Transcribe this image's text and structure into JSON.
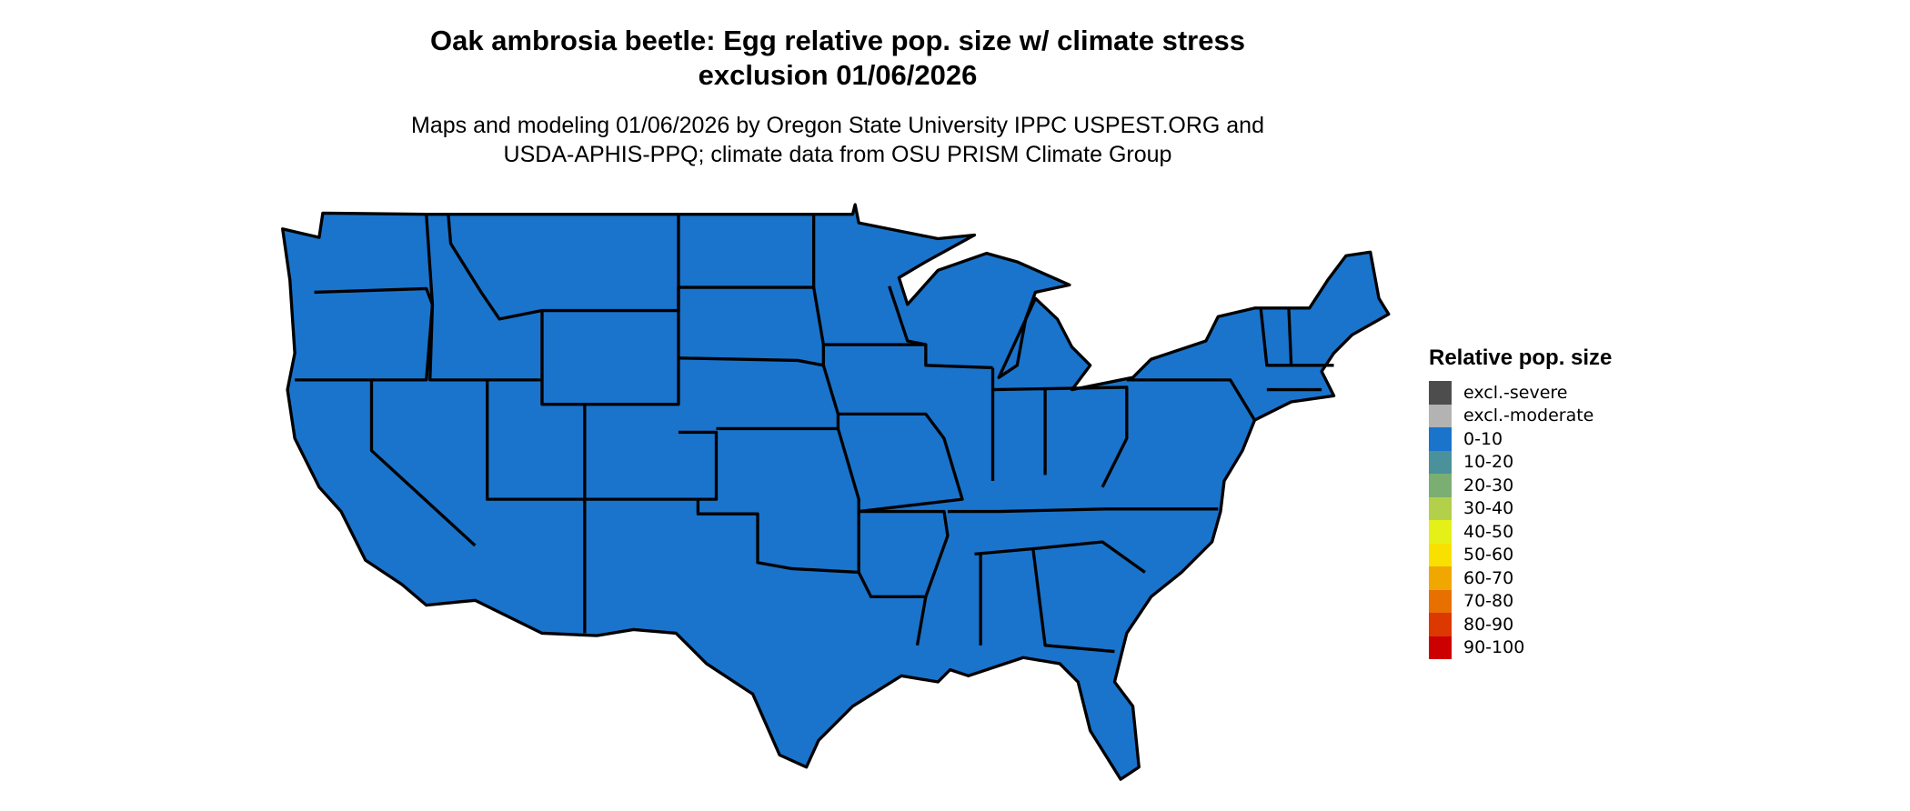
{
  "title": "Oak ambrosia beetle: Egg relative pop. size w/ climate stress exclusion 01/06/2026",
  "title_lines": [
    "Oak ambrosia beetle: Egg relative pop. size w/ climate stress",
    "exclusion 01/06/2026"
  ],
  "subtitle_lines": [
    "Maps and modeling 01/06/2026 by Oregon State University IPPC USPEST.ORG and",
    "USDA-APHIS-PPQ; climate data from OSU PRISM Climate Group"
  ],
  "map": {
    "region": "contiguous United States",
    "fill_category": "0-10",
    "fill_color": "#1a74cc",
    "border_color": "#000000"
  },
  "legend": {
    "title": "Relative pop. size",
    "items": [
      {
        "label": "excl.-severe",
        "color": "#4d4d4d"
      },
      {
        "label": "excl.-moderate",
        "color": "#b3b3b3"
      },
      {
        "label": "0-10",
        "color": "#1a74cc"
      },
      {
        "label": "10-20",
        "color": "#4a919b"
      },
      {
        "label": "20-30",
        "color": "#7bae72"
      },
      {
        "label": "30-40",
        "color": "#b3d04a"
      },
      {
        "label": "40-50",
        "color": "#e5f018"
      },
      {
        "label": "50-60",
        "color": "#f8e000"
      },
      {
        "label": "60-70",
        "color": "#f0a800"
      },
      {
        "label": "70-80",
        "color": "#e87000"
      },
      {
        "label": "80-90",
        "color": "#dc3800"
      },
      {
        "label": "90-100",
        "color": "#cc0000"
      }
    ]
  }
}
